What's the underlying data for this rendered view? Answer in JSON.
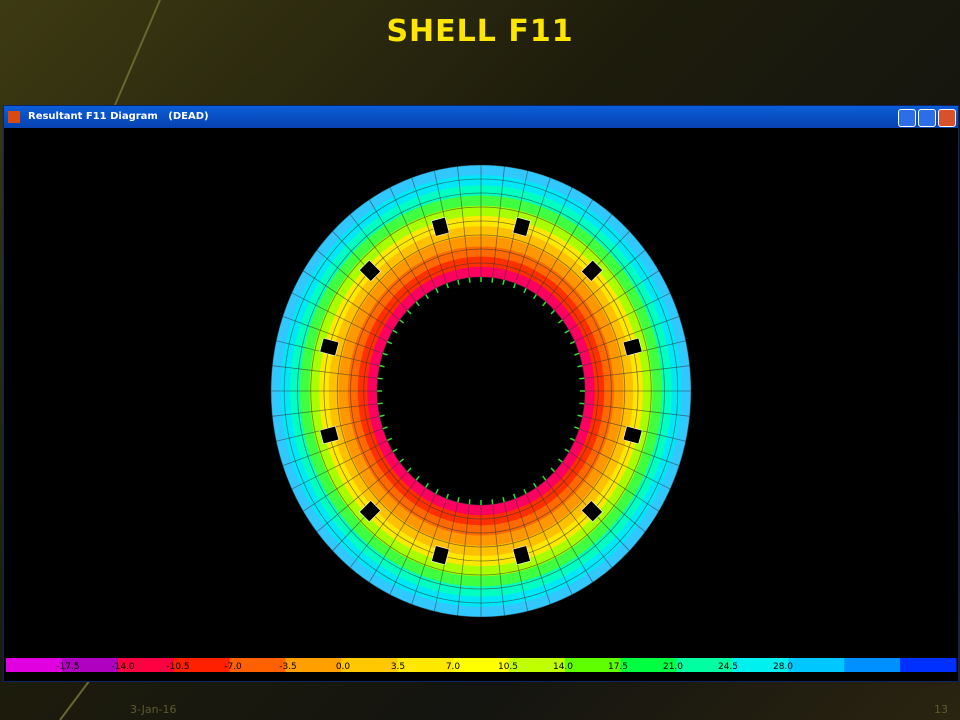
{
  "slide_title": "SHELL F11",
  "window": {
    "title": "Resultant F11 Diagram   (DEAD)"
  },
  "legend": {
    "labels": [
      "-17.5",
      "-14.0",
      "-10.5",
      "-7.0",
      "-3.5",
      "0.0",
      "3.5",
      "7.0",
      "10.5",
      "14.0",
      "17.5",
      "21.0",
      "24.5",
      "28.0"
    ]
  },
  "footer": {
    "date": "3-Jan-16",
    "page": "13"
  }
}
